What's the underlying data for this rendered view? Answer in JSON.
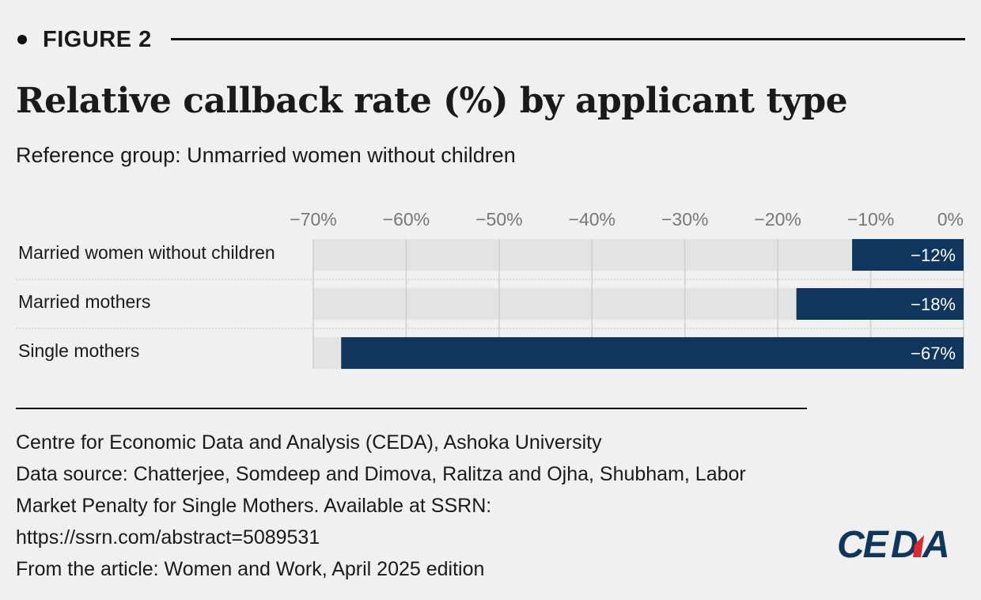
{
  "figure_label": "FIGURE 2",
  "title": "Relative callback rate (%) by applicant type",
  "subtitle": "Reference group: Unmarried women without children",
  "chart_data": {
    "type": "bar",
    "orientation": "horizontal",
    "title": "Relative callback rate (%) by applicant type",
    "subtitle": "Reference group: Unmarried women without children",
    "categories": [
      "Married women without children",
      "Married mothers",
      "Single mothers"
    ],
    "values": [
      -12,
      -18,
      -67
    ],
    "value_labels": [
      "−12%",
      "−18%",
      "−67%"
    ],
    "xlim": [
      -70,
      0
    ],
    "ticks": [
      -70,
      -60,
      -50,
      -40,
      -30,
      -20,
      -10,
      0
    ],
    "tick_labels": [
      "−70%",
      "−60%",
      "−50%",
      "−40%",
      "−30%",
      "−20%",
      "−10%",
      "0%"
    ],
    "axis_position": "top",
    "grid": true,
    "legend": "none",
    "bar_color": "#11365e",
    "track_color": "#e3e3e3"
  },
  "footer": {
    "lines": [
      "Centre for Economic Data and Analysis (CEDA), Ashoka University",
      "Data source: Chatterjee, Somdeep and Dimova, Ralitza and Ojha, Shubham, Labor",
      "Market Penalty for Single Mothers. Available at SSRN:",
      "https://ssrn.com/abstract=5089531",
      "From the article: Women and Work, April 2025 edition"
    ]
  },
  "logo": {
    "text": "CEDA",
    "colors": {
      "main": "#11365e",
      "accent": "#d92b2b"
    }
  }
}
